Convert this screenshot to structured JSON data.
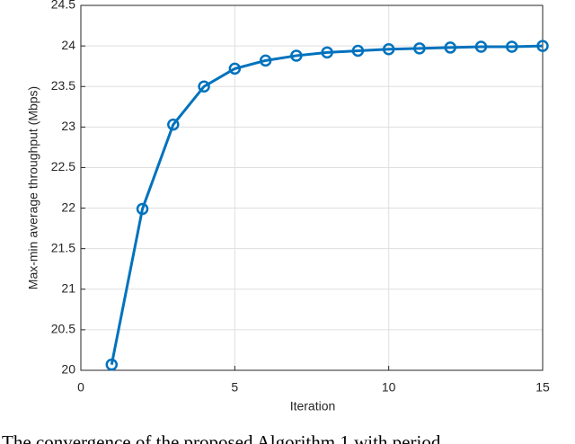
{
  "chart_data": {
    "type": "line",
    "x": [
      1,
      2,
      3,
      4,
      5,
      6,
      7,
      8,
      9,
      10,
      11,
      12,
      13,
      14,
      15
    ],
    "series": [
      {
        "color": "#0072bd",
        "values": [
          20.07,
          21.99,
          23.03,
          23.5,
          23.72,
          23.82,
          23.88,
          23.92,
          23.94,
          23.96,
          23.97,
          23.98,
          23.99,
          23.99,
          24.0
        ]
      }
    ],
    "x_label": "Iteration",
    "y_label": "Max-min average throughput (Mbps)",
    "xlim": [
      0,
      15
    ],
    "xticks": [
      0,
      5,
      10,
      15
    ],
    "ylim": [
      20,
      24.5
    ],
    "yticks": [
      20,
      20.5,
      21,
      21.5,
      22,
      22.5,
      23,
      23.5,
      24,
      24.5
    ],
    "grid": true,
    "caption": "The convergence of the proposed Algorithm 1 with period"
  }
}
